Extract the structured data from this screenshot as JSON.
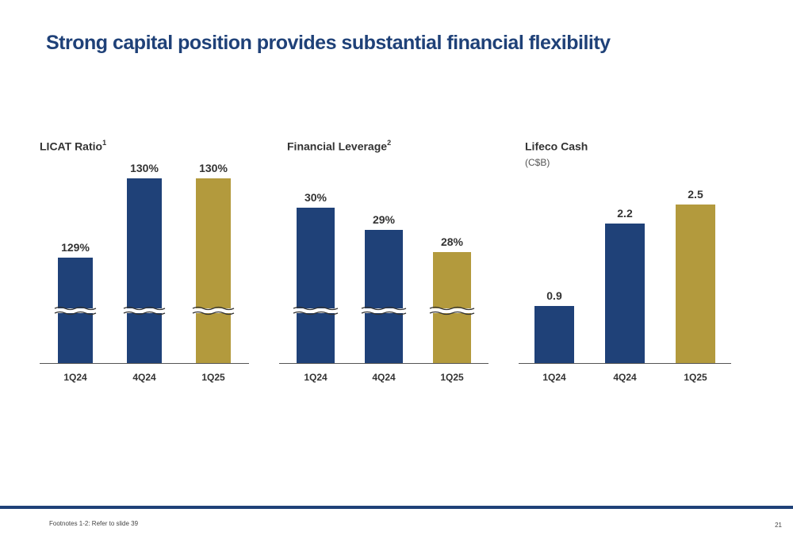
{
  "page": {
    "title": "Strong capital position provides substantial financial flexibility",
    "footnote": "Footnotes 1-2: Refer to slide 39",
    "slide_number": "21"
  },
  "colors": {
    "navy": "#1f4178",
    "gold": "#b39a3d",
    "axis": "#555555",
    "text": "#333333"
  },
  "chart_data": [
    {
      "type": "bar",
      "title": "LICAT Ratio",
      "title_sup": "1",
      "subtitle": "",
      "categories": [
        "1Q24",
        "4Q24",
        "1Q25"
      ],
      "values": [
        129,
        130,
        130
      ],
      "value_labels": [
        "129%",
        "130%",
        "130%"
      ],
      "bar_colors": [
        "navy",
        "navy",
        "gold"
      ],
      "axis_break": true,
      "grid": false
    },
    {
      "type": "bar",
      "title": "Financial Leverage",
      "title_sup": "2",
      "subtitle": "",
      "categories": [
        "1Q24",
        "4Q24",
        "1Q25"
      ],
      "values": [
        30,
        29,
        28
      ],
      "value_labels": [
        "30%",
        "29%",
        "28%"
      ],
      "bar_colors": [
        "navy",
        "navy",
        "gold"
      ],
      "axis_break": true,
      "grid": false
    },
    {
      "type": "bar",
      "title": "Lifeco Cash",
      "title_sup": "",
      "subtitle": "(C$B)",
      "categories": [
        "1Q24",
        "4Q24",
        "1Q25"
      ],
      "values": [
        0.9,
        2.2,
        2.5
      ],
      "value_labels": [
        "0.9",
        "2.2",
        "2.5"
      ],
      "bar_colors": [
        "navy",
        "navy",
        "gold"
      ],
      "axis_break": false,
      "ylim": [
        0,
        2.5
      ],
      "grid": false
    }
  ]
}
